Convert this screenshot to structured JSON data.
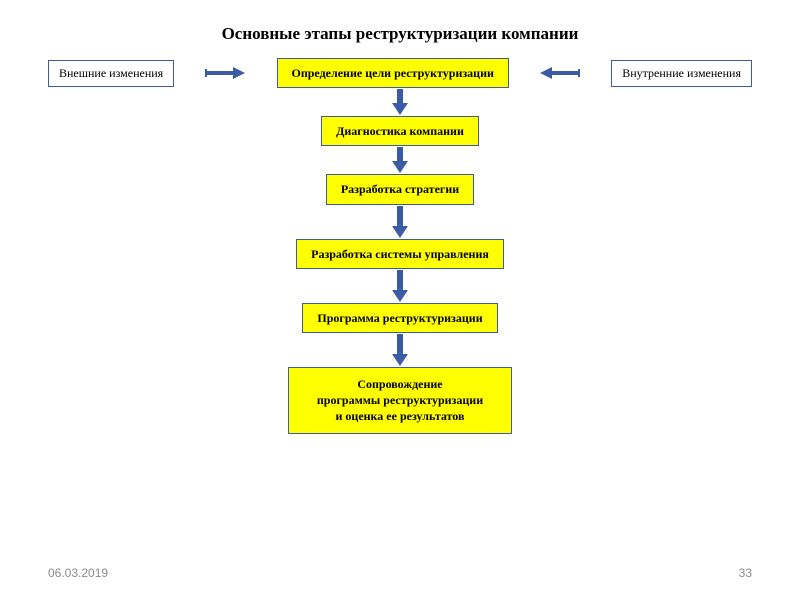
{
  "title": "Основные этапы реструктуризации компании",
  "side_left": "Внешние изменения",
  "side_right": "Внутренние изменения",
  "steps": {
    "s1": "Определение цели реструктуризации",
    "s2": "Диагностика компании",
    "s3": "Разработка стратегии",
    "s4": "Разработка системы управления",
    "s5": "Программа реструктуризации",
    "s6": "Сопровождение\nпрограммы реструктуризации\nи оценка ее результатов"
  },
  "footer": {
    "date": "06.03.2019",
    "page": "33"
  },
  "style": {
    "type": "flowchart",
    "box_fill": "#ffff00",
    "box_border": "#3b5ba5",
    "side_box_fill": "#ffffff",
    "side_box_border": "#3b5ba5",
    "arrow_color": "#3b5ba5",
    "background": "#ffffff",
    "title_fontsize": 17,
    "box_fontsize": 12,
    "footer_color": "#8a8a8a"
  }
}
